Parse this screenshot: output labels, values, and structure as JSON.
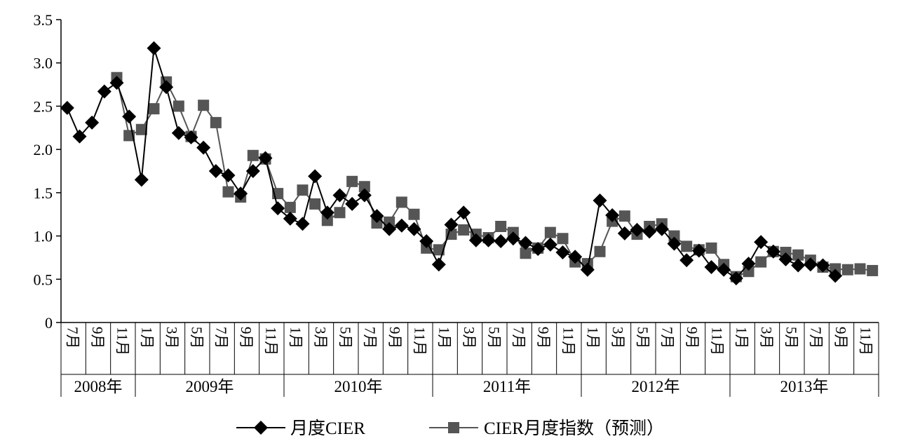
{
  "chart_data": {
    "type": "line",
    "ylim": [
      0,
      3.5
    ],
    "yticks": [
      "0",
      "0.5",
      "1.0",
      "1.5",
      "2.0",
      "2.5",
      "3.0",
      "3.5"
    ],
    "grid": false,
    "legend_position": "bottom",
    "month_labels": [
      "7月",
      "",
      "9月",
      "",
      "11月",
      "",
      "1月",
      "",
      "3月",
      "",
      "5月",
      "",
      "7月",
      "",
      "9月",
      "",
      "11月",
      "",
      "1月",
      "",
      "3月",
      "",
      "5月",
      "",
      "7月",
      "",
      "9月",
      "",
      "11月",
      "",
      "1月",
      "",
      "3月",
      "",
      "5月",
      "",
      "7月",
      "",
      "9月",
      "",
      "11月",
      "",
      "1月",
      "",
      "3月",
      "",
      "5月",
      "",
      "7月",
      "",
      "9月",
      "",
      "11月",
      "",
      "1月",
      "",
      "3月",
      "",
      "5月",
      "",
      "7月",
      "",
      "9月",
      "",
      "11月",
      ""
    ],
    "years": [
      {
        "label": "2008年",
        "start": 0,
        "count": 6
      },
      {
        "label": "2009年",
        "start": 6,
        "count": 12
      },
      {
        "label": "2010年",
        "start": 18,
        "count": 12
      },
      {
        "label": "2011年",
        "start": 30,
        "count": 12
      },
      {
        "label": "2012年",
        "start": 42,
        "count": 12
      },
      {
        "label": "2013年",
        "start": 54,
        "count": 12
      }
    ],
    "series": [
      {
        "name": "月度CIER",
        "color": "#000000",
        "marker": "diamond",
        "values": [
          2.48,
          2.15,
          2.31,
          2.67,
          2.77,
          2.38,
          1.65,
          3.17,
          2.72,
          2.19,
          2.14,
          2.02,
          1.75,
          1.7,
          1.49,
          1.75,
          1.9,
          1.32,
          1.2,
          1.14,
          1.69,
          1.27,
          1.47,
          1.37,
          1.47,
          1.23,
          1.08,
          1.12,
          1.08,
          0.94,
          0.67,
          1.13,
          1.27,
          0.95,
          0.95,
          0.94,
          0.97,
          0.92,
          0.85,
          0.9,
          0.81,
          0.76,
          0.61,
          1.41,
          1.24,
          1.03,
          1.07,
          1.05,
          1.08,
          0.91,
          0.72,
          0.83,
          0.64,
          0.61,
          0.51,
          0.68,
          0.93,
          0.82,
          0.73,
          0.66,
          0.67,
          0.66,
          0.54,
          null,
          null,
          null
        ]
      },
      {
        "name": "CIER月度指数（预测）",
        "color": "#555555",
        "marker": "square",
        "values": [
          null,
          null,
          null,
          null,
          2.83,
          2.16,
          2.23,
          2.47,
          2.78,
          2.5,
          2.15,
          2.51,
          2.31,
          1.51,
          1.45,
          1.93,
          1.89,
          1.49,
          1.33,
          1.53,
          1.37,
          1.18,
          1.27,
          1.63,
          1.57,
          1.15,
          1.16,
          1.39,
          1.25,
          0.86,
          0.84,
          1.02,
          1.07,
          1.02,
          0.98,
          1.11,
          1.04,
          0.8,
          0.86,
          1.04,
          0.97,
          0.7,
          0.68,
          0.82,
          1.17,
          1.23,
          1.02,
          1.11,
          1.14,
          1.0,
          0.88,
          0.84,
          0.86,
          0.67,
          0.53,
          0.59,
          0.7,
          0.82,
          0.81,
          0.78,
          0.72,
          0.64,
          0.62,
          0.61,
          0.62,
          0.6
        ]
      }
    ]
  }
}
